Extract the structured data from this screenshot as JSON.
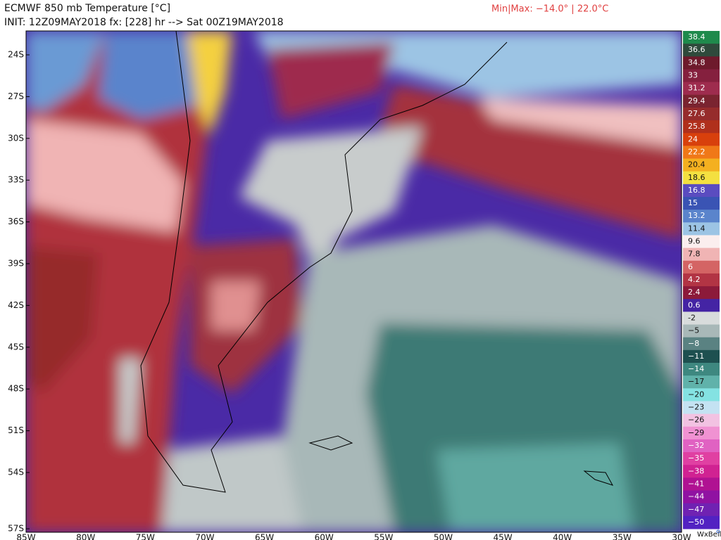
{
  "header": {
    "title": "ECMWF 850 mb Temperature [°C]",
    "init": "INIT: 12Z09MAY2018 fx: [228] hr --> Sat 00Z19MAY2018",
    "minmax": "Min|Max: −14.0° | 22.0°C"
  },
  "lat_labels": [
    "24S",
    "27S",
    "30S",
    "33S",
    "36S",
    "39S",
    "42S",
    "45S",
    "48S",
    "51S",
    "54S",
    "57S"
  ],
  "lon_labels": [
    "85W",
    "80W",
    "75W",
    "70W",
    "65W",
    "60W",
    "55W",
    "50W",
    "45W",
    "40W",
    "35W",
    "30W"
  ],
  "colorbar": [
    {
      "label": "38.4",
      "color": "#1f8a4c"
    },
    {
      "label": "36.6",
      "color": "#2f4a3c"
    },
    {
      "label": "34.8",
      "color": "#6e1a2c"
    },
    {
      "label": "33",
      "color": "#85203e"
    },
    {
      "label": "31.2",
      "color": "#9e2c4e"
    },
    {
      "label": "29.4",
      "color": "#7a2430"
    },
    {
      "label": "27.6",
      "color": "#962c2c"
    },
    {
      "label": "25.8",
      "color": "#b0301c"
    },
    {
      "label": "24",
      "color": "#d8400c"
    },
    {
      "label": "22.2",
      "color": "#f07818"
    },
    {
      "label": "20.4",
      "color": "#f4b020"
    },
    {
      "label": "18.6",
      "color": "#f4e040"
    },
    {
      "label": "16.8",
      "color": "#5a4cc0"
    },
    {
      "label": "15",
      "color": "#3a54b4"
    },
    {
      "label": "13.2",
      "color": "#5a84cc"
    },
    {
      "label": "11.4",
      "color": "#9cc4e4"
    },
    {
      "label": "9.6",
      "color": "#fbeeee"
    },
    {
      "label": "7.8",
      "color": "#f0b4b4"
    },
    {
      "label": "6",
      "color": "#d46464"
    },
    {
      "label": "4.2",
      "color": "#b23444"
    },
    {
      "label": "2.4",
      "color": "#8c1a3a"
    },
    {
      "label": "0.6",
      "color": "#4424a4"
    },
    {
      "label": "-2",
      "color": "#d8dcdc"
    },
    {
      "label": "−5",
      "color": "#a8b8b8"
    },
    {
      "label": "−8",
      "color": "#5a8282"
    },
    {
      "label": "−11",
      "color": "#1e5050"
    },
    {
      "label": "−14",
      "color": "#3e8880"
    },
    {
      "label": "−17",
      "color": "#60b2aa"
    },
    {
      "label": "−20",
      "color": "#84e2e2"
    },
    {
      "label": "−23",
      "color": "#c4e2f2"
    },
    {
      "label": "−26",
      "color": "#f2c2e2"
    },
    {
      "label": "−29",
      "color": "#f092d2"
    },
    {
      "label": "−32",
      "color": "#e062c2"
    },
    {
      "label": "−35",
      "color": "#e040a2"
    },
    {
      "label": "−38",
      "color": "#d02292"
    },
    {
      "label": "−41",
      "color": "#b01292"
    },
    {
      "label": "−44",
      "color": "#9012a2"
    },
    {
      "label": "−47",
      "color": "#7022b2"
    },
    {
      "label": "−50",
      "color": "#5222c2"
    }
  ],
  "credit": "WxBell"
}
